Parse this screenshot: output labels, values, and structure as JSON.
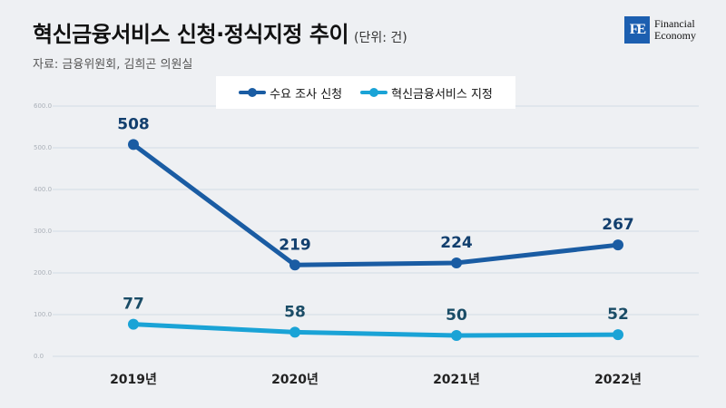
{
  "header": {
    "title": "혁신금융서비스 신청·정식지정 추이",
    "unit": "(단위: 건)",
    "source": "자료: 금융위원회, 김희곤 의원실"
  },
  "logo": {
    "mark": "FE",
    "line1": "Financial",
    "line2": "Economy"
  },
  "chart_data": {
    "type": "line",
    "categories": [
      "2019년",
      "2020년",
      "2021년",
      "2022년"
    ],
    "series": [
      {
        "name": "수요 조사 신청",
        "values": [
          508,
          219,
          224,
          267
        ],
        "color": "#1a5ca3"
      },
      {
        "name": "혁신금융서비스 지정",
        "values": [
          77,
          58,
          50,
          52
        ],
        "color": "#1aa3d6"
      }
    ],
    "ylim": [
      0,
      600
    ],
    "yticks": [
      0,
      100,
      200,
      300,
      400,
      500,
      600
    ],
    "ytick_labels": [
      "0.0",
      "100.0",
      "200.0",
      "300.0",
      "400.0",
      "500.0",
      "600.0"
    ],
    "grid": true,
    "legend": "top-center"
  }
}
